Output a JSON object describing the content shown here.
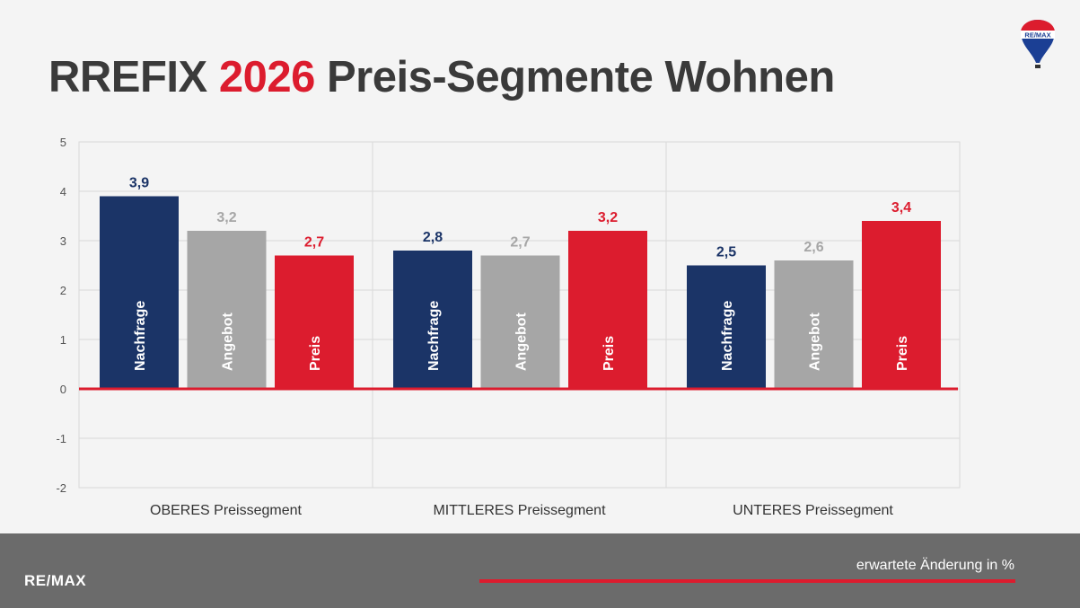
{
  "title": {
    "prefix": "RREFIX",
    "year": "2026",
    "suffix": "Preis-Segmente Wohnen"
  },
  "logo_top": "RE/MAX",
  "footer": {
    "logo": "RE/MAX",
    "note": "erwartete Änderung in %"
  },
  "colors": {
    "nachfrage": "#1b3467",
    "angebot": "#a6a6a6",
    "preis": "#dc1c2e",
    "angebot_label": "#a6a6a6",
    "background": "#f4f4f4",
    "footer": "#6b6b6b"
  },
  "chart_data": {
    "type": "bar",
    "categories": [
      "OBERES Preissegment",
      "MITTLERES Preissegment",
      "UNTERES Preissegment"
    ],
    "series": [
      {
        "name": "Nachfrage",
        "values": [
          3.9,
          2.8,
          2.5
        ],
        "labels": [
          "3,9",
          "2,8",
          "2,5"
        ]
      },
      {
        "name": "Angebot",
        "values": [
          3.2,
          2.7,
          2.6
        ],
        "labels": [
          "3,2",
          "2,7",
          "2,6"
        ]
      },
      {
        "name": "Preis",
        "values": [
          2.7,
          3.2,
          3.4
        ],
        "labels": [
          "2,7",
          "3,2",
          "3,4"
        ]
      }
    ],
    "yticks": [
      "5",
      "4",
      "3",
      "2",
      "1",
      "0",
      "-1",
      "-2"
    ],
    "ylim": [
      -2,
      5
    ],
    "grid": true,
    "legend": "none (series names shown inside bars)"
  }
}
